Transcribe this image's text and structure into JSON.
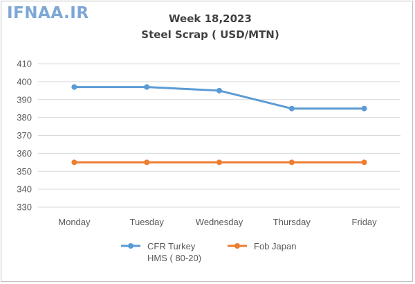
{
  "watermark": "IFNAA.IR",
  "chart_data": {
    "type": "line",
    "title": "Week 18,2023",
    "subtitle": "Steel Scrap ( USD/MTN)",
    "categories": [
      "Monday",
      "Tuesday",
      "Wednesday",
      "Thursday",
      "Friday"
    ],
    "series": [
      {
        "name_lines": [
          "CFR Turkey",
          "HMS ( 80-20)"
        ],
        "values": [
          397,
          397,
          395,
          385,
          385
        ],
        "color": "#5b9bd5"
      },
      {
        "name_lines": [
          "Fob Japan"
        ],
        "values": [
          355,
          355,
          355,
          355,
          355
        ],
        "color": "#ed7d31"
      }
    ],
    "ylim": [
      330,
      410
    ],
    "yticks": [
      330,
      340,
      350,
      360,
      370,
      380,
      390,
      400,
      410
    ],
    "grid": true,
    "legend": "bottom"
  }
}
